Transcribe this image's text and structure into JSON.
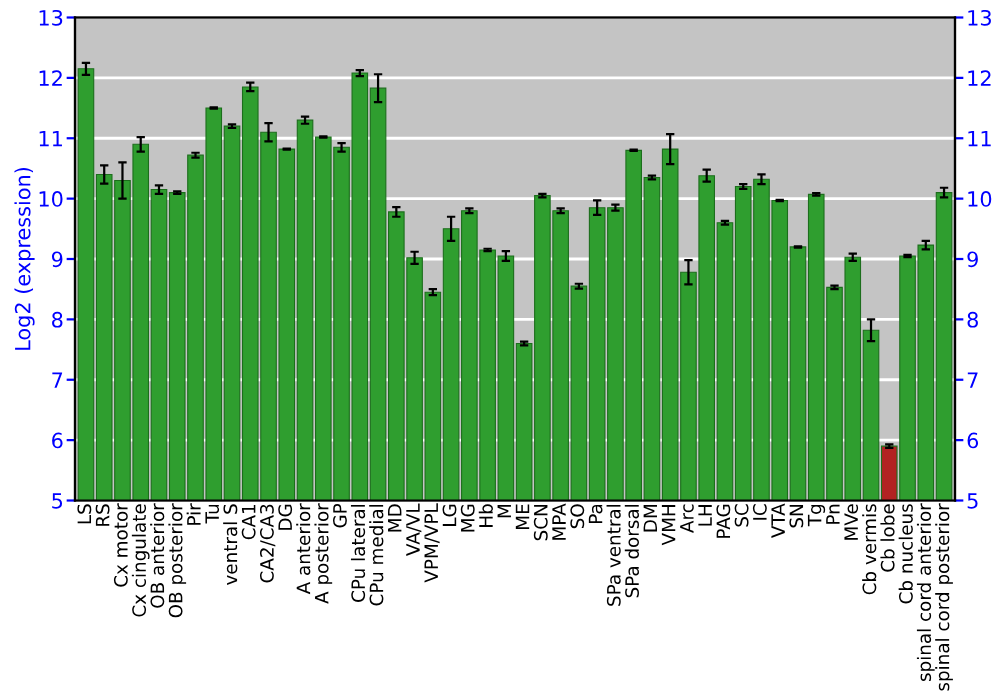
{
  "chart_data": {
    "type": "bar",
    "ylabel": "Log2 (expression)",
    "categories": [
      "LS",
      "RS",
      "Cx motor",
      "Cx cingulate",
      "OB anterior",
      "OB posterior",
      "Pir",
      "Tu",
      "ventral S",
      "CA1",
      "CA2/CA3",
      "DG",
      "A anterior",
      "A posterior",
      "GP",
      "CPu lateral",
      "CPu medial",
      "MD",
      "VA/VL",
      "VPM/VPL",
      "LG",
      "MG",
      "Hb",
      "M",
      "ME",
      "SCN",
      "MPA",
      "SO",
      "Pa",
      "SPa ventral",
      "SPa dorsal",
      "DM",
      "VMH",
      "Arc",
      "LH",
      "PAG",
      "SC",
      "IC",
      "VTA",
      "SN",
      "Tg",
      "Pn",
      "MVe",
      "Cb vermis",
      "Cb lobe",
      "Cb nucleus",
      "spinal cord anterior",
      "spinal cord posterior"
    ],
    "values": [
      12.15,
      10.4,
      10.3,
      10.9,
      10.15,
      10.1,
      10.72,
      11.5,
      11.2,
      11.85,
      11.1,
      10.82,
      11.3,
      11.02,
      10.85,
      12.08,
      11.83,
      9.78,
      9.02,
      8.45,
      9.5,
      9.8,
      9.15,
      9.05,
      7.6,
      10.05,
      9.8,
      8.55,
      9.85,
      9.85,
      10.8,
      10.35,
      10.82,
      8.78,
      10.38,
      9.6,
      10.2,
      10.32,
      9.97,
      9.2,
      10.07,
      8.53,
      9.03,
      7.82,
      5.9,
      9.05,
      9.23,
      10.1
    ],
    "errors": [
      0.1,
      0.15,
      0.3,
      0.12,
      0.07,
      0.02,
      0.04,
      0.01,
      0.03,
      0.07,
      0.15,
      0.01,
      0.06,
      0.01,
      0.07,
      0.05,
      0.23,
      0.08,
      0.1,
      0.05,
      0.2,
      0.04,
      0.02,
      0.08,
      0.03,
      0.03,
      0.04,
      0.04,
      0.12,
      0.05,
      0.01,
      0.03,
      0.25,
      0.2,
      0.1,
      0.03,
      0.04,
      0.08,
      0.01,
      0.01,
      0.02,
      0.03,
      0.06,
      0.18,
      0.03,
      0.02,
      0.07,
      0.08
    ],
    "colors": [
      "#2f9e2f",
      "#2f9e2f",
      "#2f9e2f",
      "#2f9e2f",
      "#2f9e2f",
      "#2f9e2f",
      "#2f9e2f",
      "#2f9e2f",
      "#2f9e2f",
      "#2f9e2f",
      "#2f9e2f",
      "#2f9e2f",
      "#2f9e2f",
      "#2f9e2f",
      "#2f9e2f",
      "#2f9e2f",
      "#2f9e2f",
      "#2f9e2f",
      "#2f9e2f",
      "#2f9e2f",
      "#2f9e2f",
      "#2f9e2f",
      "#2f9e2f",
      "#2f9e2f",
      "#2f9e2f",
      "#2f9e2f",
      "#2f9e2f",
      "#2f9e2f",
      "#2f9e2f",
      "#2f9e2f",
      "#2f9e2f",
      "#2f9e2f",
      "#2f9e2f",
      "#2f9e2f",
      "#2f9e2f",
      "#2f9e2f",
      "#2f9e2f",
      "#2f9e2f",
      "#2f9e2f",
      "#2f9e2f",
      "#2f9e2f",
      "#2f9e2f",
      "#2f9e2f",
      "#2f9e2f",
      "#b22222",
      "#2f9e2f",
      "#2f9e2f",
      "#2f9e2f"
    ],
    "ylim": [
      5,
      13
    ],
    "yticks": [
      5,
      6,
      7,
      8,
      9,
      10,
      11,
      12,
      13
    ],
    "y2lim": [
      5,
      13
    ],
    "y2ticks": [
      5,
      6,
      7,
      8,
      9,
      10,
      11,
      12,
      13
    ],
    "grid": "y"
  }
}
